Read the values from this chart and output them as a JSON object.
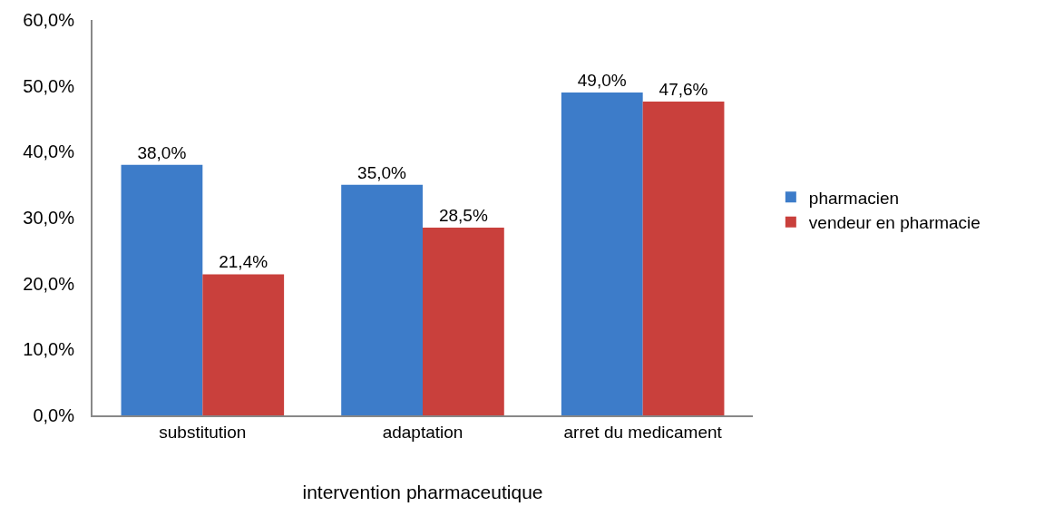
{
  "chart_data": {
    "type": "bar",
    "xlabel": "intervention pharmaceutique",
    "categories": [
      "substitution",
      "adaptation",
      "arret du medicament"
    ],
    "series": [
      {
        "name": "pharmacien",
        "color": "#3d7cc9",
        "values": [
          38.0,
          35.0,
          49.0
        ],
        "value_labels": [
          "38,0%",
          "35,0%",
          "49,0%"
        ]
      },
      {
        "name": "vendeur en pharmacie",
        "color": "#c9403c",
        "values": [
          21.4,
          28.5,
          47.6
        ],
        "value_labels": [
          "21,4%",
          "28,5%",
          "47,6%"
        ]
      }
    ],
    "ylim": [
      0,
      60
    ],
    "yticks": [
      {
        "value": 0,
        "label": "0,0%"
      },
      {
        "value": 10,
        "label": "10,0%"
      },
      {
        "value": 20,
        "label": "20,0%"
      },
      {
        "value": 30,
        "label": "30,0%"
      },
      {
        "value": 40,
        "label": "40,0%"
      },
      {
        "value": 50,
        "label": "50,0%"
      },
      {
        "value": 60,
        "label": "60,0%"
      }
    ],
    "grid": false,
    "legend": "right"
  }
}
